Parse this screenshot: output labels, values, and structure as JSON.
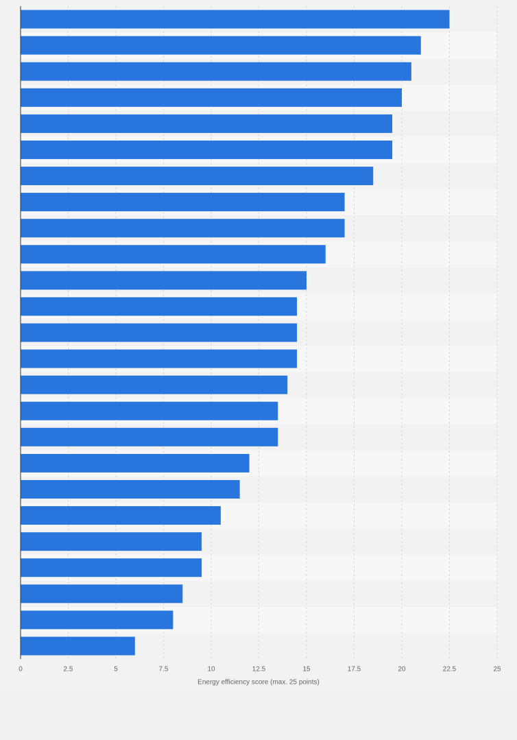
{
  "chart_data": {
    "type": "bar",
    "orientation": "horizontal",
    "x_label": "Energy efficiency score (max. 25 points)",
    "categories": [
      null,
      null,
      null,
      null,
      null,
      null,
      null,
      null,
      null,
      null,
      null,
      null,
      null,
      null,
      null,
      null,
      null,
      null,
      null,
      null,
      null,
      null,
      null,
      null,
      null
    ],
    "values": [
      22.5,
      21,
      20.5,
      20,
      19.5,
      19.5,
      18.5,
      17,
      17,
      16,
      15,
      14.5,
      14.5,
      14.5,
      14,
      13.5,
      13.5,
      12,
      11.5,
      10.5,
      9.5,
      9.5,
      8.5,
      8,
      6
    ],
    "color": "#2876dd",
    "xlim": [
      0,
      25
    ],
    "xticks": [
      0,
      2.5,
      5,
      7.5,
      10,
      12.5,
      15,
      17.5,
      20,
      22.5,
      25
    ],
    "grid": true
  }
}
